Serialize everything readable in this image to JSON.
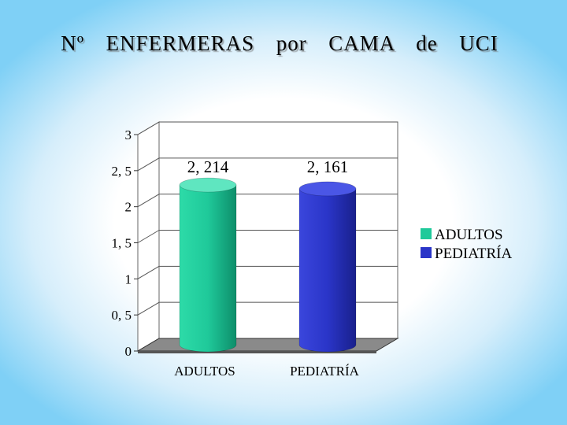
{
  "title": "Nº  ENFERMERAS  por  CAMA  de  UCI",
  "chart_data": {
    "type": "bar",
    "categories": [
      "ADULTOS",
      "PEDIATRÍA"
    ],
    "series": [
      {
        "name": "ADULTOS",
        "values": [
          2.214,
          null
        ],
        "color": "#1fc99a"
      },
      {
        "name": "PEDIATRÍA",
        "values": [
          null,
          2.161
        ],
        "color": "#2a35c8"
      }
    ],
    "data_labels": [
      "2, 214",
      "2, 161"
    ],
    "yticks": [
      "0",
      "0, 5",
      "1",
      "1, 5",
      "2",
      "2, 5",
      "3"
    ],
    "ylim": [
      0,
      3
    ],
    "legend_position": "right",
    "grid": true,
    "style": "3d-cylinder"
  }
}
